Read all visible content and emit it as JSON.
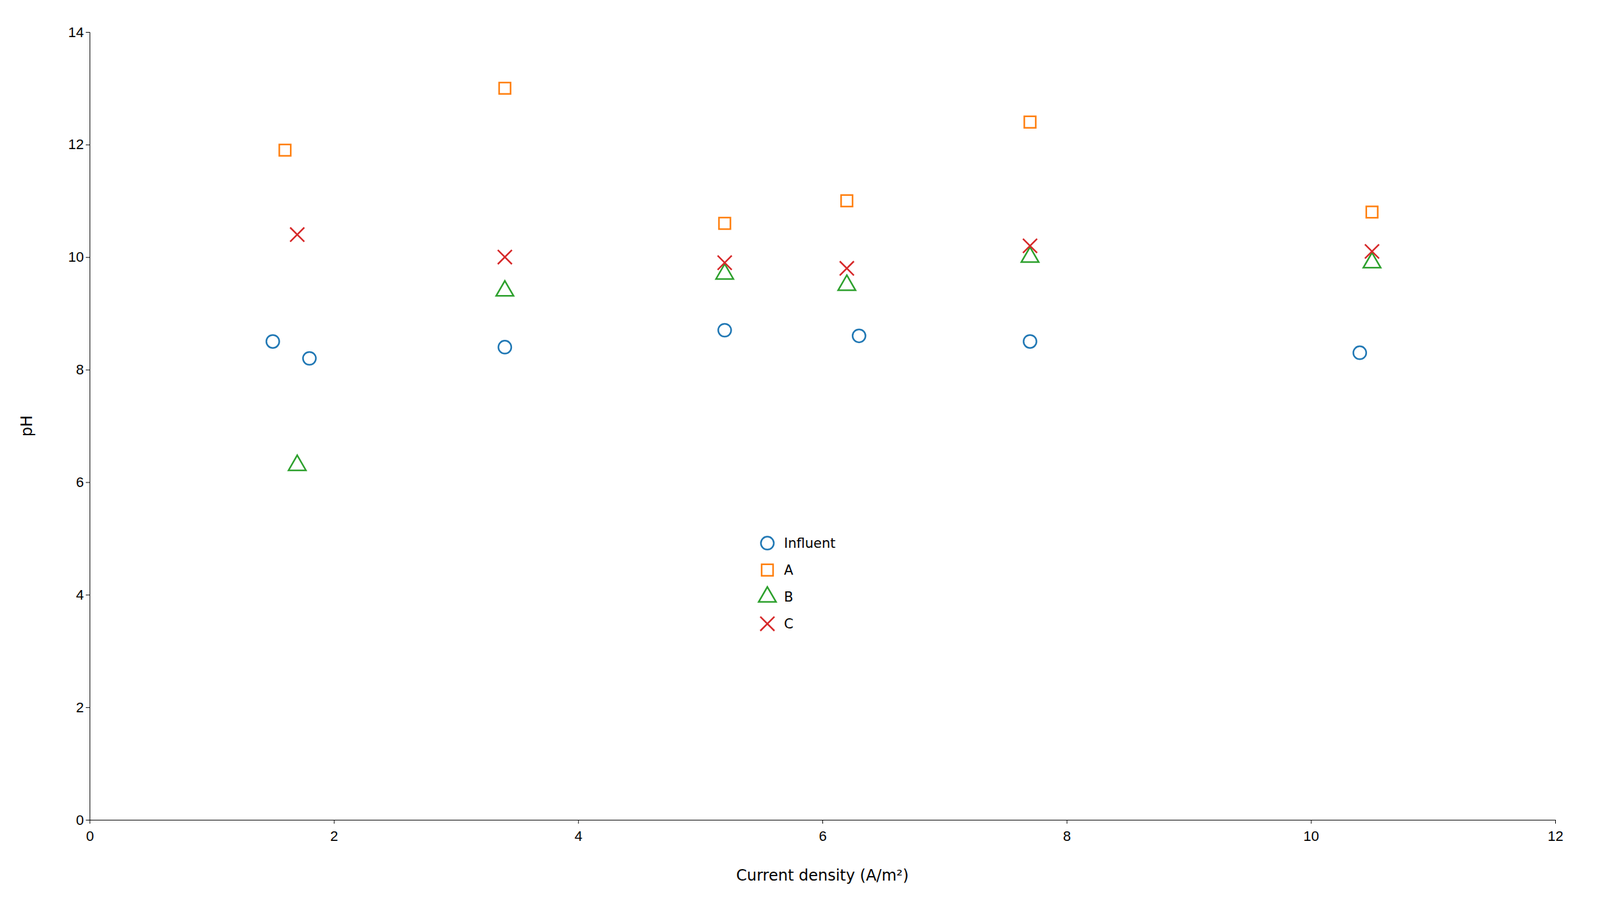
{
  "chart_data": {
    "type": "scatter",
    "xlabel": "Current density (A/m²)",
    "ylabel": "pH",
    "xlim": [
      0,
      12
    ],
    "ylim": [
      0,
      14
    ],
    "xticks": [
      0,
      2,
      4,
      6,
      8,
      10,
      12
    ],
    "yticks": [
      0,
      2,
      4,
      6,
      8,
      10,
      12,
      14
    ],
    "grid": false,
    "legend": "lower center",
    "series": [
      {
        "name": "Influent",
        "marker": "circle",
        "x": [
          1.5,
          1.8,
          3.4,
          5.2,
          6.3,
          7.7,
          10.4
        ],
        "values": [
          8.5,
          8.2,
          8.4,
          8.7,
          8.6,
          8.5,
          8.3
        ]
      },
      {
        "name": "A",
        "marker": "square",
        "x": [
          1.6,
          3.4,
          5.2,
          6.2,
          7.7,
          10.5
        ],
        "values": [
          11.9,
          13.0,
          10.6,
          11.0,
          12.4,
          10.8
        ]
      },
      {
        "name": "B",
        "marker": "triangle",
        "x": [
          1.7,
          3.4,
          5.2,
          6.2,
          7.7,
          10.5
        ],
        "values": [
          6.3,
          9.4,
          9.7,
          9.5,
          10.0,
          9.9
        ]
      },
      {
        "name": "C",
        "marker": "x",
        "x": [
          1.7,
          3.4,
          5.2,
          6.2,
          7.7,
          10.5
        ],
        "values": [
          10.4,
          10.0,
          9.9,
          9.8,
          10.2,
          10.1
        ]
      }
    ]
  }
}
